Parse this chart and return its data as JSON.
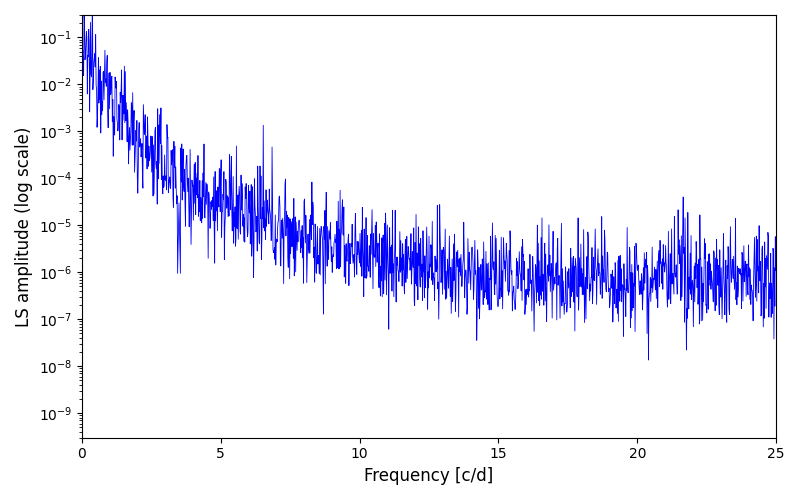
{
  "xlabel": "Frequency [c/d]",
  "ylabel": "LS amplitude (log scale)",
  "line_color": "#0000FF",
  "xlim": [
    0,
    25
  ],
  "ylim": [
    3e-10,
    0.3
  ],
  "freq_max": 25.0,
  "n_points": 1500,
  "peak_freq": 0.7,
  "peak_amplitude": 0.03,
  "background_color": "#ffffff",
  "fig_width": 8.0,
  "fig_height": 5.0,
  "dpi": 100,
  "seed": 12345
}
